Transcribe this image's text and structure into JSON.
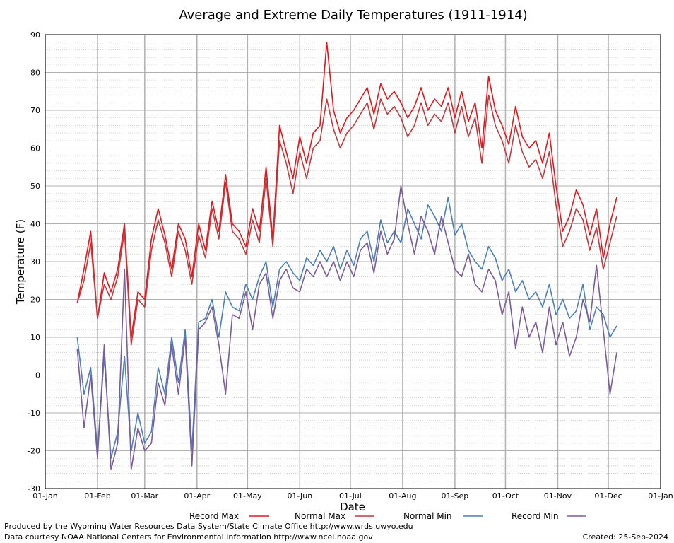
{
  "chart_data": {
    "type": "line",
    "title": "Average and Extreme Daily Temperatures (1911-1914)",
    "xlabel": "Date",
    "ylabel": "Temperature (F)",
    "ylim": [
      -30,
      90
    ],
    "y_ticks": [
      -30,
      -20,
      -10,
      0,
      10,
      20,
      30,
      40,
      50,
      60,
      70,
      80,
      90
    ],
    "x_range_day_of_year": [
      1,
      366
    ],
    "x_tick_labels": [
      "01-Jan",
      "01-Feb",
      "01-Mar",
      "01-Apr",
      "01-May",
      "01-Jun",
      "01-Jul",
      "01-Aug",
      "01-Sep",
      "01-Oct",
      "01-Nov",
      "01-Dec",
      "01-Jan"
    ],
    "grid": true,
    "legend_position": "bottom",
    "series": [
      {
        "name": "Record Max",
        "color": "#e8141a",
        "day_of_year": [
          20,
          24,
          28,
          32,
          36,
          40,
          44,
          48,
          52,
          56,
          60,
          64,
          68,
          72,
          76,
          80,
          84,
          88,
          92,
          96,
          100,
          104,
          108,
          112,
          116,
          120,
          124,
          128,
          132,
          136,
          140,
          144,
          148,
          152,
          156,
          160,
          164,
          168,
          172,
          176,
          180,
          184,
          188,
          192,
          196,
          200,
          204,
          208,
          212,
          216,
          220,
          224,
          228,
          232,
          236,
          240,
          244,
          248,
          252,
          256,
          260,
          264,
          268,
          272,
          276,
          280,
          284,
          288,
          292,
          296,
          300,
          304,
          308,
          312,
          316,
          320,
          324,
          328,
          332,
          336,
          340
        ],
        "values": [
          19,
          28,
          38,
          15,
          27,
          22,
          28,
          40,
          10,
          22,
          20,
          36,
          44,
          37,
          28,
          40,
          36,
          26,
          40,
          33,
          46,
          38,
          53,
          40,
          38,
          34,
          44,
          38,
          55,
          36,
          66,
          59,
          52,
          63,
          56,
          64,
          66,
          88,
          70,
          64,
          68,
          70,
          73,
          76,
          69,
          77,
          73,
          75,
          72,
          68,
          71,
          76,
          70,
          73,
          71,
          76,
          68,
          75,
          67,
          72,
          60,
          79,
          70,
          66,
          61,
          71,
          63,
          60,
          62,
          56,
          64,
          50,
          38,
          42,
          49,
          45,
          37,
          44,
          31,
          40,
          47
        ]
      },
      {
        "name": "Normal Max",
        "color": "#c0393e",
        "day_of_year": [
          20,
          24,
          28,
          32,
          36,
          40,
          44,
          48,
          52,
          56,
          60,
          64,
          68,
          72,
          76,
          80,
          84,
          88,
          92,
          96,
          100,
          104,
          108,
          112,
          116,
          120,
          124,
          128,
          132,
          136,
          140,
          144,
          148,
          152,
          156,
          160,
          164,
          168,
          172,
          176,
          180,
          184,
          188,
          192,
          196,
          200,
          204,
          208,
          212,
          216,
          220,
          224,
          228,
          232,
          236,
          240,
          244,
          248,
          252,
          256,
          260,
          264,
          268,
          272,
          276,
          280,
          284,
          288,
          292,
          296,
          300,
          304,
          308,
          312,
          316,
          320,
          324,
          328,
          332,
          336,
          340
        ],
        "values": [
          19,
          25,
          35,
          15,
          24,
          20,
          26,
          38,
          8,
          20,
          18,
          33,
          41,
          35,
          26,
          38,
          33,
          24,
          37,
          31,
          44,
          36,
          51,
          38,
          36,
          32,
          41,
          35,
          52,
          34,
          62,
          56,
          48,
          59,
          52,
          60,
          62,
          73,
          65,
          60,
          64,
          66,
          69,
          72,
          65,
          73,
          69,
          71,
          68,
          63,
          66,
          72,
          66,
          69,
          67,
          72,
          64,
          71,
          63,
          68,
          56,
          74,
          66,
          62,
          56,
          66,
          59,
          55,
          57,
          52,
          59,
          45,
          34,
          38,
          44,
          41,
          33,
          39,
          28,
          35,
          42
        ]
      },
      {
        "name": "Normal Min",
        "color": "#4a7fba",
        "day_of_year": [
          20,
          24,
          28,
          32,
          36,
          40,
          44,
          48,
          52,
          56,
          60,
          64,
          68,
          72,
          76,
          80,
          84,
          88,
          92,
          96,
          100,
          104,
          108,
          112,
          116,
          120,
          124,
          128,
          132,
          136,
          140,
          144,
          148,
          152,
          156,
          160,
          164,
          168,
          172,
          176,
          180,
          184,
          188,
          192,
          196,
          200,
          204,
          208,
          212,
          216,
          220,
          224,
          228,
          232,
          236,
          240,
          244,
          248,
          252,
          256,
          260,
          264,
          268,
          272,
          276,
          280,
          284,
          288,
          292,
          296,
          300,
          304,
          308,
          312,
          316,
          320,
          324,
          328,
          332,
          336,
          340
        ],
        "values": [
          10,
          -5,
          2,
          -20,
          5,
          -22,
          -15,
          5,
          -20,
          -10,
          -18,
          -15,
          2,
          -5,
          10,
          -2,
          12,
          -20,
          14,
          15,
          20,
          10,
          22,
          18,
          17,
          24,
          20,
          26,
          30,
          18,
          28,
          30,
          27,
          25,
          31,
          29,
          33,
          30,
          34,
          28,
          33,
          29,
          36,
          38,
          30,
          41,
          35,
          38,
          35,
          44,
          40,
          36,
          45,
          42,
          38,
          47,
          37,
          40,
          33,
          30,
          28,
          34,
          31,
          25,
          28,
          22,
          25,
          20,
          22,
          18,
          24,
          16,
          20,
          15,
          17,
          24,
          12,
          18,
          16,
          10,
          13
        ]
      },
      {
        "name": "Record Min",
        "color": "#7b5a9e",
        "day_of_year": [
          20,
          24,
          28,
          32,
          36,
          40,
          44,
          48,
          52,
          56,
          60,
          64,
          68,
          72,
          76,
          80,
          84,
          88,
          92,
          96,
          100,
          104,
          108,
          112,
          116,
          120,
          124,
          128,
          132,
          136,
          140,
          144,
          148,
          152,
          156,
          160,
          164,
          168,
          172,
          176,
          180,
          184,
          188,
          192,
          196,
          200,
          204,
          208,
          212,
          216,
          220,
          224,
          228,
          232,
          236,
          240,
          244,
          248,
          252,
          256,
          260,
          264,
          268,
          272,
          276,
          280,
          284,
          288,
          292,
          296,
          300,
          304,
          308,
          312,
          316,
          320,
          324,
          328,
          332,
          336,
          340
        ],
        "values": [
          7,
          -14,
          0,
          -22,
          8,
          -25,
          -18,
          28,
          -25,
          -14,
          -20,
          -18,
          -2,
          -8,
          8,
          -5,
          10,
          -24,
          12,
          14,
          18,
          8,
          -5,
          16,
          15,
          22,
          12,
          24,
          27,
          15,
          25,
          28,
          23,
          22,
          28,
          26,
          30,
          26,
          30,
          25,
          30,
          26,
          33,
          35,
          27,
          38,
          32,
          36,
          50,
          40,
          32,
          42,
          38,
          32,
          42,
          35,
          28,
          26,
          32,
          24,
          22,
          28,
          25,
          16,
          22,
          7,
          18,
          10,
          14,
          6,
          18,
          8,
          14,
          5,
          10,
          20,
          14,
          29,
          12,
          -5,
          6
        ]
      }
    ]
  },
  "footer": {
    "credit_line1": "Produced by the Wyoming Water Resources Data System/State Climate Office http://www.wrds.uwyo.edu",
    "credit_line2": "Data courtesy NOAA National Centers for Environmental Information http://www.ncei.noaa.gov",
    "created": "Created:  25-Sep-2024"
  }
}
